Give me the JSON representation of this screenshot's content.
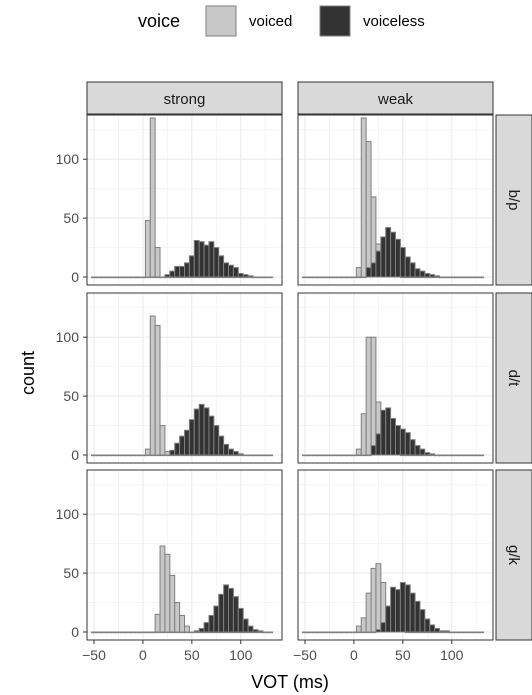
{
  "chart_data": {
    "type": "bar",
    "subtype": "faceted-histogram",
    "xlabel": "VOT (ms)",
    "ylabel": "count",
    "xlim": [
      -50,
      135
    ],
    "ylim": [
      0,
      135
    ],
    "xticks": [
      -50,
      0,
      50,
      100
    ],
    "xtick_labels": [
      "−50",
      "0",
      "50",
      "100"
    ],
    "yticks": [
      0,
      50,
      100
    ],
    "ytick_labels": [
      "0",
      "50",
      "100"
    ],
    "bin_width": 5,
    "grid": true,
    "legend": {
      "title": "voice",
      "position": "top",
      "entries": [
        {
          "name": "voiced",
          "color": "#c8c8c8"
        },
        {
          "name": "voiceless",
          "color": "#333333"
        }
      ]
    },
    "columns": [
      "strong",
      "weak"
    ],
    "rows": [
      "b/p",
      "d/t",
      "g/k"
    ],
    "series": [
      {
        "name": "voiced",
        "color": "#c8c8c8"
      },
      {
        "name": "voiceless",
        "color": "#333333"
      }
    ],
    "panels": [
      {
        "column": "strong",
        "row": "b/p",
        "voiced": {
          "x": [
            -50,
            -45,
            -40,
            -35,
            -30,
            -25,
            -20,
            -15,
            -10,
            -5,
            0,
            5,
            10,
            15,
            20,
            25,
            30,
            35,
            40,
            45,
            50,
            55,
            60,
            65,
            70,
            75,
            80,
            85,
            90,
            95,
            100,
            105,
            110,
            115,
            120,
            125,
            130
          ],
          "y": [
            0,
            0,
            0,
            0,
            0,
            0,
            0,
            0,
            0,
            0,
            0,
            48,
            135,
            25,
            0,
            0,
            0,
            0,
            0,
            0,
            0,
            0,
            0,
            0,
            0,
            0,
            0,
            0,
            0,
            0,
            0,
            0,
            0,
            0,
            0,
            0,
            0
          ]
        },
        "voiceless": {
          "x": [
            -50,
            -45,
            -40,
            -35,
            -30,
            -25,
            -20,
            -15,
            -10,
            -5,
            0,
            5,
            10,
            15,
            20,
            25,
            30,
            35,
            40,
            45,
            50,
            55,
            60,
            65,
            70,
            75,
            80,
            85,
            90,
            95,
            100,
            105,
            110,
            115,
            120,
            125,
            130
          ],
          "y": [
            0,
            0,
            0,
            0,
            0,
            0,
            0,
            0,
            0,
            0,
            0,
            0,
            0,
            0,
            0,
            2,
            5,
            9,
            9,
            12,
            18,
            31,
            30,
            27,
            30,
            25,
            18,
            12,
            10,
            8,
            3,
            2,
            1,
            0,
            0,
            0,
            0
          ]
        }
      },
      {
        "column": "weak",
        "row": "b/p",
        "voiced": {
          "x": [
            -50,
            -45,
            -40,
            -35,
            -30,
            -25,
            -20,
            -15,
            -10,
            -5,
            0,
            5,
            10,
            15,
            20,
            25,
            30,
            35,
            40,
            45,
            50,
            55,
            60,
            65,
            70,
            75,
            80,
            85,
            90,
            95,
            100,
            105,
            110,
            115,
            120,
            125,
            130
          ],
          "y": [
            0,
            0,
            0,
            0,
            0,
            0,
            0,
            0,
            0,
            0,
            0,
            8,
            135,
            115,
            68,
            28,
            18,
            8,
            4,
            1,
            0,
            0,
            0,
            0,
            0,
            0,
            0,
            0,
            0,
            0,
            0,
            0,
            0,
            0,
            0,
            0,
            0
          ]
        },
        "voiceless": {
          "x": [
            -50,
            -45,
            -40,
            -35,
            -30,
            -25,
            -20,
            -15,
            -10,
            -5,
            0,
            5,
            10,
            15,
            20,
            25,
            30,
            35,
            40,
            45,
            50,
            55,
            60,
            65,
            70,
            75,
            80,
            85,
            90,
            95,
            100,
            105,
            110,
            115,
            120,
            125,
            130
          ],
          "y": [
            0,
            0,
            0,
            0,
            0,
            0,
            0,
            0,
            0,
            0,
            0,
            0,
            0,
            8,
            12,
            22,
            34,
            42,
            38,
            32,
            25,
            17,
            12,
            7,
            5,
            3,
            2,
            1,
            0,
            0,
            0,
            0,
            0,
            0,
            0,
            0,
            0
          ]
        }
      },
      {
        "column": "strong",
        "row": "d/t",
        "voiced": {
          "x": [
            -50,
            -45,
            -40,
            -35,
            -30,
            -25,
            -20,
            -15,
            -10,
            -5,
            0,
            5,
            10,
            15,
            20,
            25,
            30,
            35,
            40,
            45,
            50,
            55,
            60,
            65,
            70,
            75,
            80,
            85,
            90,
            95,
            100,
            105,
            110,
            115,
            120,
            125,
            130
          ],
          "y": [
            0,
            0,
            0,
            0,
            0,
            0,
            0,
            0,
            0,
            0,
            0,
            5,
            118,
            110,
            25,
            3,
            0,
            0,
            0,
            0,
            0,
            0,
            0,
            0,
            0,
            0,
            0,
            0,
            0,
            0,
            0,
            0,
            0,
            0,
            0,
            0,
            0
          ]
        },
        "voiceless": {
          "x": [
            -50,
            -45,
            -40,
            -35,
            -30,
            -25,
            -20,
            -15,
            -10,
            -5,
            0,
            5,
            10,
            15,
            20,
            25,
            30,
            35,
            40,
            45,
            50,
            55,
            60,
            65,
            70,
            75,
            80,
            85,
            90,
            95,
            100,
            105,
            110,
            115,
            120,
            125,
            130
          ],
          "y": [
            0,
            0,
            0,
            0,
            0,
            0,
            0,
            0,
            0,
            0,
            0,
            0,
            0,
            0,
            0,
            0,
            4,
            10,
            16,
            21,
            30,
            39,
            43,
            40,
            33,
            25,
            16,
            9,
            5,
            3,
            1,
            0,
            0,
            0,
            0,
            0,
            0
          ]
        }
      },
      {
        "column": "weak",
        "row": "d/t",
        "voiced": {
          "x": [
            -50,
            -45,
            -40,
            -35,
            -30,
            -25,
            -20,
            -15,
            -10,
            -5,
            0,
            5,
            10,
            15,
            20,
            25,
            30,
            35,
            40,
            45,
            50,
            55,
            60,
            65,
            70,
            75,
            80,
            85,
            90,
            95,
            100,
            105,
            110,
            115,
            120,
            125,
            130
          ],
          "y": [
            0,
            0,
            0,
            0,
            0,
            0,
            0,
            0,
            0,
            0,
            0,
            5,
            35,
            100,
            100,
            45,
            28,
            12,
            6,
            2,
            0,
            0,
            0,
            0,
            0,
            0,
            0,
            0,
            0,
            0,
            0,
            0,
            0,
            0,
            0,
            0,
            0
          ]
        },
        "voiceless": {
          "x": [
            -50,
            -45,
            -40,
            -35,
            -30,
            -25,
            -20,
            -15,
            -10,
            -5,
            0,
            5,
            10,
            15,
            20,
            25,
            30,
            35,
            40,
            45,
            50,
            55,
            60,
            65,
            70,
            75,
            80,
            85,
            90,
            95,
            100,
            105,
            110,
            115,
            120,
            125,
            130
          ],
          "y": [
            0,
            0,
            0,
            0,
            0,
            0,
            0,
            0,
            0,
            0,
            0,
            0,
            0,
            0,
            8,
            18,
            38,
            40,
            31,
            25,
            22,
            19,
            13,
            8,
            5,
            2,
            1,
            0,
            0,
            0,
            0,
            0,
            0,
            0,
            0,
            0,
            0
          ]
        }
      },
      {
        "column": "strong",
        "row": "g/k",
        "voiced": {
          "x": [
            -50,
            -45,
            -40,
            -35,
            -30,
            -25,
            -20,
            -15,
            -10,
            -5,
            0,
            5,
            10,
            15,
            20,
            25,
            30,
            35,
            40,
            45,
            50,
            55,
            60,
            65,
            70,
            75,
            80,
            85,
            90,
            95,
            100,
            105,
            110,
            115,
            120,
            125,
            130
          ],
          "y": [
            0,
            0,
            0,
            0,
            0,
            0,
            0,
            0,
            0,
            0,
            0,
            0,
            0,
            15,
            73,
            66,
            48,
            25,
            14,
            5,
            0,
            0,
            0,
            0,
            0,
            0,
            0,
            0,
            0,
            0,
            0,
            0,
            0,
            0,
            0,
            0,
            0
          ]
        },
        "voiceless": {
          "x": [
            -50,
            -45,
            -40,
            -35,
            -30,
            -25,
            -20,
            -15,
            -10,
            -5,
            0,
            5,
            10,
            15,
            20,
            25,
            30,
            35,
            40,
            45,
            50,
            55,
            60,
            65,
            70,
            75,
            80,
            85,
            90,
            95,
            100,
            105,
            110,
            115,
            120,
            125,
            130
          ],
          "y": [
            0,
            0,
            0,
            0,
            0,
            0,
            0,
            0,
            0,
            0,
            0,
            0,
            0,
            0,
            0,
            0,
            0,
            0,
            0,
            0,
            0,
            1,
            3,
            8,
            14,
            22,
            32,
            40,
            37,
            30,
            20,
            11,
            5,
            2,
            1,
            0,
            0
          ]
        }
      },
      {
        "column": "weak",
        "row": "g/k",
        "voiced": {
          "x": [
            -50,
            -45,
            -40,
            -35,
            -30,
            -25,
            -20,
            -15,
            -10,
            -5,
            0,
            5,
            10,
            15,
            20,
            25,
            30,
            35,
            40,
            45,
            50,
            55,
            60,
            65,
            70,
            75,
            80,
            85,
            90,
            95,
            100,
            105,
            110,
            115,
            120,
            125,
            130
          ],
          "y": [
            0,
            0,
            0,
            0,
            0,
            0,
            0,
            0,
            0,
            0,
            0,
            5,
            12,
            33,
            54,
            58,
            42,
            22,
            11,
            4,
            1,
            0,
            0,
            0,
            0,
            0,
            0,
            0,
            0,
            0,
            0,
            0,
            0,
            0,
            0,
            0,
            0
          ]
        },
        "voiceless": {
          "x": [
            -50,
            -45,
            -40,
            -35,
            -30,
            -25,
            -20,
            -15,
            -10,
            -5,
            0,
            5,
            10,
            15,
            20,
            25,
            30,
            35,
            40,
            45,
            50,
            55,
            60,
            65,
            70,
            75,
            80,
            85,
            90,
            95,
            100,
            105,
            110,
            115,
            120,
            125,
            130
          ],
          "y": [
            0,
            0,
            0,
            0,
            0,
            0,
            0,
            0,
            0,
            0,
            0,
            0,
            0,
            0,
            0,
            2,
            8,
            22,
            38,
            36,
            42,
            40,
            33,
            26,
            19,
            11,
            6,
            3,
            1,
            1,
            0,
            0,
            0,
            0,
            0,
            0,
            0
          ]
        }
      }
    ]
  }
}
